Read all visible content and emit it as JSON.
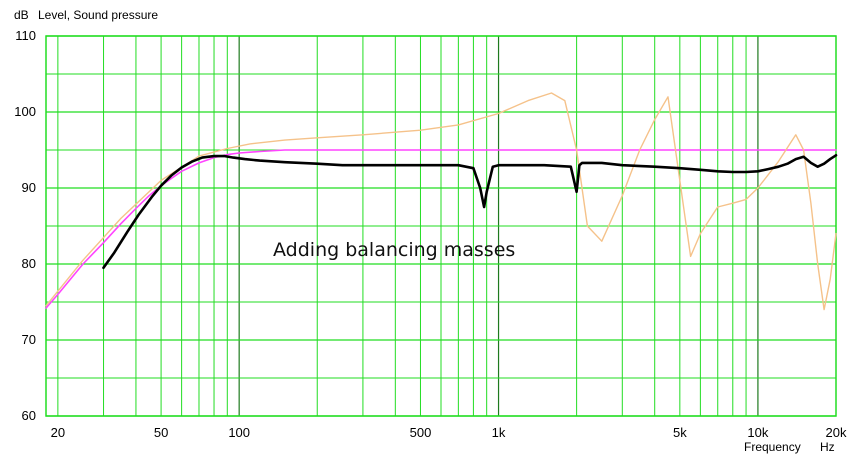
{
  "chart_data": {
    "type": "line",
    "title": "",
    "ylabel_unit": "dB",
    "ylabel": "Level, Sound pressure",
    "xlabel": "Frequency",
    "xlabel_unit": "Hz",
    "xscale": "log",
    "xlim": [
      18,
      20000
    ],
    "ylim": [
      60,
      110
    ],
    "grid": true,
    "yticks": [
      {
        "value": 60,
        "label": "60"
      },
      {
        "value": 70,
        "label": "70"
      },
      {
        "value": 80,
        "label": "80"
      },
      {
        "value": 90,
        "label": "90"
      },
      {
        "value": 100,
        "label": "100"
      },
      {
        "value": 110,
        "label": "110"
      }
    ],
    "xticks": [
      {
        "value": 20,
        "label": "20"
      },
      {
        "value": 50,
        "label": "50"
      },
      {
        "value": 100,
        "label": "100"
      },
      {
        "value": 500,
        "label": "500"
      },
      {
        "value": 1000,
        "label": "1k"
      },
      {
        "value": 5000,
        "label": "5k"
      },
      {
        "value": 10000,
        "label": "10k"
      },
      {
        "value": 20000,
        "label": "20k"
      }
    ],
    "annotations": [
      {
        "text": "Adding balancing masses",
        "x": 100,
        "y": 78
      }
    ],
    "series": [
      {
        "color": "#ff44ff",
        "x": [
          18,
          20,
          25,
          30,
          35,
          40,
          45,
          50,
          55,
          60,
          70,
          80,
          90,
          100,
          120,
          150,
          200,
          500,
          1000,
          5000,
          10000,
          20000
        ],
        "y": [
          74.2,
          76,
          80,
          82.8,
          85.3,
          87.3,
          89,
          90.3,
          91.3,
          92.2,
          93.3,
          94,
          94.4,
          94.6,
          94.8,
          95,
          95,
          95,
          95,
          95,
          95,
          95
        ]
      },
      {
        "color": "#f5c28a",
        "x": [
          18,
          25,
          35,
          50,
          70,
          90,
          110,
          150,
          200,
          300,
          500,
          700,
          1000,
          1300,
          1600,
          1800,
          2000,
          2200,
          2500,
          3000,
          3500,
          4000,
          4500,
          5000,
          5500,
          6000,
          7000,
          8000,
          9000,
          10000,
          12000,
          14000,
          15000,
          16000,
          17000,
          18000,
          19000,
          20000
        ],
        "y": [
          74.5,
          80.5,
          86,
          91,
          94.2,
          95.2,
          95.8,
          96.3,
          96.6,
          97,
          97.6,
          98.3,
          99.8,
          101.5,
          102.5,
          101.5,
          95,
          85,
          83,
          89,
          95,
          99,
          102,
          91,
          81,
          84,
          87.5,
          88,
          88.5,
          90,
          93.5,
          97,
          95,
          88,
          80,
          74,
          78,
          84
        ]
      },
      {
        "color": "#000000",
        "x": [
          30,
          33,
          37,
          41,
          46,
          50,
          55,
          60,
          66,
          72,
          80,
          88,
          95,
          105,
          120,
          150,
          200,
          250,
          300,
          500,
          700,
          800,
          850,
          880,
          900,
          950,
          1000,
          1500,
          1900,
          2000,
          2050,
          2100,
          2500,
          3000,
          4000,
          5000,
          6000,
          7000,
          8000,
          9000,
          10000,
          11000,
          12000,
          13000,
          14000,
          15000,
          16000,
          17000,
          18000,
          19000,
          20000
        ],
        "y": [
          79.5,
          81.5,
          84.2,
          86.5,
          88.8,
          90.3,
          91.7,
          92.7,
          93.5,
          94,
          94.2,
          94.2,
          94,
          93.8,
          93.6,
          93.4,
          93.2,
          93,
          93,
          93,
          93,
          92.6,
          90,
          87.5,
          89.5,
          92.8,
          93,
          93,
          92.8,
          89.5,
          93,
          93.3,
          93.3,
          93,
          92.8,
          92.6,
          92.4,
          92.2,
          92.1,
          92.1,
          92.2,
          92.5,
          92.8,
          93.2,
          93.8,
          94.1,
          93.3,
          92.8,
          93.2,
          93.8,
          94.3
        ]
      }
    ]
  }
}
